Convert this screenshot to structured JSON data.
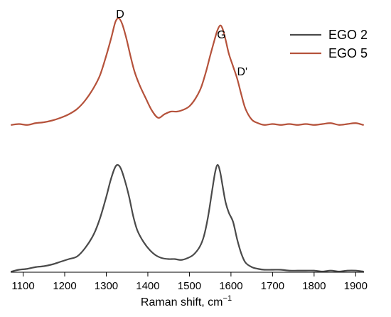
{
  "chart_data": {
    "type": "line",
    "title": "",
    "xlabel": "Raman shift, cm",
    "xlabel_superscript": "−1",
    "ylabel": "",
    "xlim": [
      1070,
      1920
    ],
    "x_ticks": [
      1100,
      1200,
      1300,
      1400,
      1500,
      1600,
      1700,
      1800,
      1900
    ],
    "x_tick_labels": [
      "1100",
      "1200",
      "1300",
      "1400",
      "1500",
      "1600",
      "1700",
      "1800",
      "1900"
    ],
    "y_axis_shown": false,
    "grid": false,
    "legend_position": "top-right",
    "series": [
      {
        "name": "EGO 2",
        "color": "#4a4a4a",
        "baseline_level": 0,
        "x": [
          1072,
          1090,
          1110,
          1130,
          1150,
          1170,
          1190,
          1210,
          1230,
          1250,
          1270,
          1285,
          1300,
          1310,
          1320,
          1327,
          1335,
          1345,
          1355,
          1365,
          1375,
          1390,
          1405,
          1420,
          1435,
          1450,
          1465,
          1480,
          1495,
          1510,
          1525,
          1535,
          1545,
          1555,
          1562,
          1568,
          1574,
          1580,
          1587,
          1595,
          1605,
          1615,
          1625,
          1635,
          1650,
          1665,
          1680,
          1700,
          1720,
          1740,
          1760,
          1780,
          1800,
          1820,
          1840,
          1860,
          1880,
          1900,
          1918
        ],
        "y": [
          0.0,
          0.02,
          0.03,
          0.05,
          0.06,
          0.08,
          0.11,
          0.14,
          0.17,
          0.27,
          0.42,
          0.6,
          0.84,
          1.02,
          1.16,
          1.2,
          1.16,
          1.02,
          0.84,
          0.62,
          0.46,
          0.33,
          0.24,
          0.18,
          0.15,
          0.14,
          0.14,
          0.13,
          0.15,
          0.19,
          0.28,
          0.4,
          0.62,
          0.92,
          1.12,
          1.2,
          1.12,
          0.96,
          0.78,
          0.66,
          0.56,
          0.36,
          0.2,
          0.1,
          0.05,
          0.03,
          0.02,
          0.02,
          0.02,
          0.01,
          0.01,
          0.01,
          0.01,
          0.0,
          0.01,
          0.0,
          0.01,
          0.01,
          0.0
        ]
      },
      {
        "name": "EGO 5",
        "color": "#b5523b",
        "baseline_level": 1.65,
        "x": [
          1072,
          1090,
          1110,
          1130,
          1150,
          1170,
          1190,
          1210,
          1230,
          1250,
          1270,
          1285,
          1300,
          1312,
          1322,
          1330,
          1338,
          1348,
          1358,
          1368,
          1380,
          1395,
          1410,
          1425,
          1440,
          1455,
          1470,
          1485,
          1500,
          1515,
          1528,
          1540,
          1550,
          1560,
          1567,
          1574,
          1580,
          1587,
          1595,
          1605,
          1615,
          1625,
          1635,
          1650,
          1665,
          1680,
          1700,
          1720,
          1740,
          1760,
          1780,
          1800,
          1820,
          1840,
          1860,
          1880,
          1900,
          1918
        ],
        "y": [
          0.0,
          0.01,
          0.0,
          0.02,
          0.03,
          0.05,
          0.08,
          0.12,
          0.18,
          0.28,
          0.42,
          0.56,
          0.78,
          0.98,
          1.16,
          1.2,
          1.14,
          0.98,
          0.78,
          0.6,
          0.45,
          0.3,
          0.16,
          0.08,
          0.12,
          0.15,
          0.15,
          0.17,
          0.21,
          0.3,
          0.42,
          0.6,
          0.78,
          0.95,
          1.06,
          1.12,
          1.08,
          0.96,
          0.8,
          0.66,
          0.52,
          0.34,
          0.18,
          0.06,
          0.02,
          0.0,
          0.01,
          0.0,
          0.01,
          0.0,
          0.01,
          0.0,
          0.01,
          0.02,
          0.0,
          0.01,
          0.02,
          0.0
        ]
      }
    ],
    "annotations": [
      {
        "text": "D",
        "x": 1330
      },
      {
        "text": "G",
        "x": 1577
      },
      {
        "text": "D'",
        "x": 1622
      }
    ]
  }
}
